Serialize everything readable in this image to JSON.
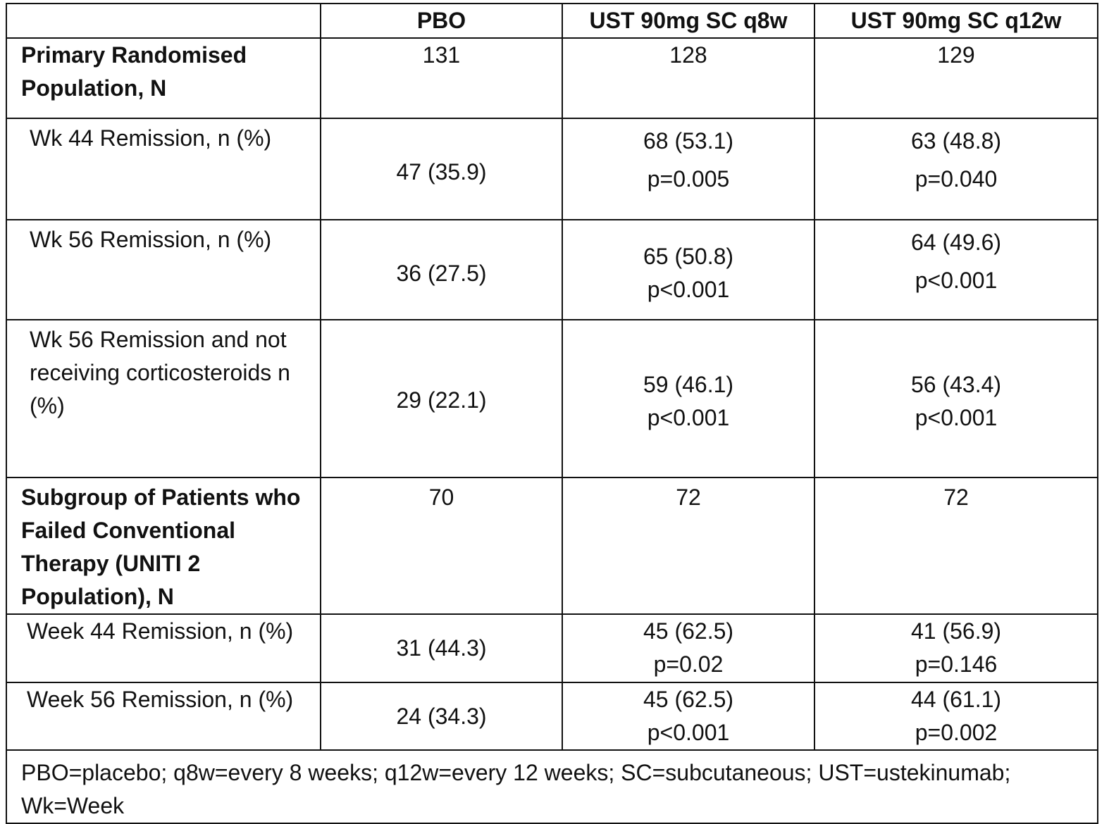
{
  "headers": [
    "",
    "PBO",
    "UST 90mg SC q8w",
    "UST 90mg SC q12w"
  ],
  "rows": [
    {
      "label": "Primary Randomised Population, N",
      "bold": true,
      "cells": [
        [
          "131"
        ],
        [
          "128"
        ],
        [
          "129"
        ]
      ]
    },
    {
      "label": "Wk 44 Remission, n (%)",
      "bold": false,
      "cells": [
        [
          "47 (35.9)"
        ],
        [
          "68 (53.1)",
          "p=0.005"
        ],
        [
          "63 (48.8)",
          "p=0.040"
        ]
      ]
    },
    {
      "label": "Wk 56 Remission, n (%)",
      "bold": false,
      "cells": [
        [
          "36 (27.5)"
        ],
        [
          "65 (50.8)",
          "p<0.001"
        ],
        [
          "64 (49.6)",
          "p<0.001"
        ]
      ]
    },
    {
      "label": "Wk 56 Remission and not receiving corticosteroids n (%)",
      "bold": false,
      "cells": [
        [
          "29 (22.1)"
        ],
        [
          "59 (46.1)",
          "p<0.001"
        ],
        [
          "56 (43.4)",
          "p<0.001"
        ]
      ]
    },
    {
      "label": "Subgroup of Patients who Failed Conventional Therapy (UNITI 2 Population), N",
      "bold": true,
      "cells": [
        [
          "70"
        ],
        [
          "72"
        ],
        [
          "72"
        ]
      ]
    },
    {
      "label": "Week 44 Remission, n (%)",
      "bold": false,
      "cells": [
        [
          "31 (44.3)"
        ],
        [
          "45 (62.5)",
          "p=0.02"
        ],
        [
          "41 (56.9)",
          "p=0.146"
        ]
      ]
    },
    {
      "label": "Week 56 Remission, n (%)",
      "bold": false,
      "cells": [
        [
          "24 (34.3)"
        ],
        [
          "45 (62.5)",
          "p<0.001"
        ],
        [
          "44 (61.1)",
          "p=0.002"
        ]
      ]
    }
  ],
  "footnote": "PBO=placebo; q8w=every 8 weeks; q12w=every 12 weeks; SC=subcutaneous; UST=ustekinumab; Wk=Week"
}
